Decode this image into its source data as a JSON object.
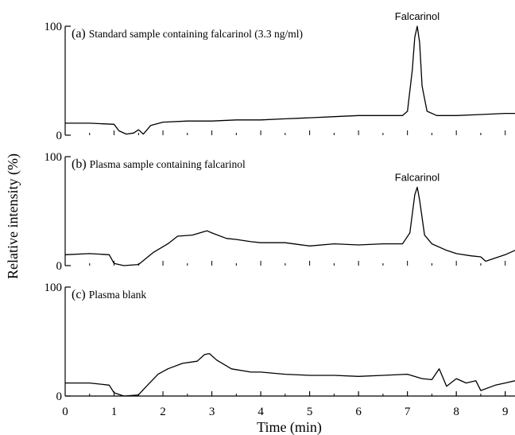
{
  "chart_data": {
    "type": "line",
    "xlabel": "Time (min)",
    "ylabel": "Relative intensity (%)",
    "xlim": [
      0,
      9.2
    ],
    "x_ticks": [
      "0",
      "1",
      "2",
      "3",
      "4",
      "5",
      "6",
      "7",
      "8",
      "9"
    ],
    "ylim": [
      0,
      100
    ],
    "y_ticks": [
      "0",
      "100"
    ],
    "grid": false,
    "series_color": "#000000",
    "panels": [
      {
        "tag": "(a)",
        "label": "Standard sample containing falcarinol (3.3 ng/ml)",
        "annotation": "Falcarinol",
        "x": [
          0,
          0.5,
          1.0,
          1.1,
          1.25,
          1.4,
          1.5,
          1.6,
          1.75,
          2.0,
          2.5,
          3.0,
          3.5,
          4.0,
          4.5,
          5.0,
          5.5,
          6.0,
          6.5,
          6.9,
          7.0,
          7.1,
          7.15,
          7.2,
          7.25,
          7.3,
          7.4,
          7.6,
          8.0,
          8.5,
          9.0,
          9.2
        ],
        "values": [
          11,
          11,
          10,
          4,
          1,
          2,
          5,
          1,
          9,
          12,
          13,
          13,
          14,
          14,
          15,
          16,
          17,
          18,
          18,
          18,
          22,
          60,
          90,
          100,
          85,
          45,
          22,
          18,
          18,
          19,
          20,
          20
        ]
      },
      {
        "tag": "(b)",
        "label": "Plasma sample containing falcarinol",
        "annotation": "Falcarinol",
        "x": [
          0,
          0.5,
          0.9,
          1.0,
          1.2,
          1.5,
          1.8,
          2.1,
          2.3,
          2.6,
          2.9,
          3.0,
          3.3,
          3.5,
          3.8,
          4.0,
          4.5,
          5.0,
          5.5,
          6.0,
          6.5,
          6.9,
          7.05,
          7.15,
          7.2,
          7.25,
          7.35,
          7.5,
          7.8,
          8.0,
          8.3,
          8.5,
          8.6,
          9.0,
          9.2
        ],
        "values": [
          10,
          11,
          10,
          2,
          0,
          1,
          12,
          20,
          27,
          28,
          32,
          30,
          25,
          24,
          22,
          21,
          21,
          18,
          20,
          19,
          20,
          20,
          30,
          65,
          72,
          60,
          28,
          20,
          14,
          11,
          9,
          8,
          4,
          10,
          14
        ]
      },
      {
        "tag": "(c)",
        "label": "Plasma blank",
        "annotation": "",
        "x": [
          0,
          0.5,
          0.9,
          1.0,
          1.2,
          1.5,
          1.6,
          1.9,
          2.1,
          2.4,
          2.7,
          2.85,
          2.95,
          3.1,
          3.4,
          3.8,
          4.0,
          4.5,
          5.0,
          5.5,
          6.0,
          6.5,
          7.0,
          7.3,
          7.5,
          7.65,
          7.8,
          8.0,
          8.2,
          8.4,
          8.5,
          8.8,
          9.0,
          9.2
        ],
        "values": [
          12,
          12,
          10,
          3,
          0,
          1,
          6,
          20,
          25,
          30,
          32,
          38,
          39,
          33,
          25,
          22,
          22,
          20,
          19,
          19,
          18,
          19,
          20,
          16,
          15,
          25,
          9,
          16,
          12,
          14,
          5,
          10,
          12,
          14
        ]
      }
    ]
  }
}
